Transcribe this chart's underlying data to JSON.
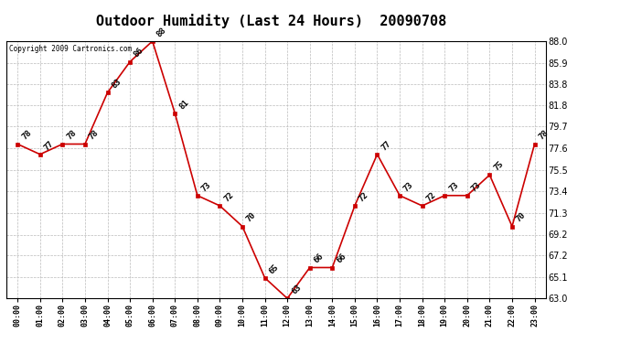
{
  "title": "Outdoor Humidity (Last 24 Hours)  20090708",
  "copyright": "Copyright 2009 Cartronics.com",
  "x_labels": [
    "00:00",
    "01:00",
    "02:00",
    "03:00",
    "04:00",
    "05:00",
    "06:00",
    "07:00",
    "08:00",
    "09:00",
    "10:00",
    "11:00",
    "12:00",
    "13:00",
    "14:00",
    "15:00",
    "16:00",
    "17:00",
    "18:00",
    "19:00",
    "20:00",
    "21:00",
    "22:00",
    "23:00"
  ],
  "y_values": [
    78,
    77,
    78,
    78,
    83,
    86,
    88,
    81,
    73,
    72,
    70,
    65,
    63,
    66,
    66,
    72,
    77,
    73,
    72,
    73,
    73,
    75,
    70,
    78
  ],
  "ylim": [
    63.0,
    88.0
  ],
  "yticks": [
    63.0,
    65.1,
    67.2,
    69.2,
    71.3,
    73.4,
    75.5,
    77.6,
    79.7,
    81.8,
    83.8,
    85.9,
    88.0
  ],
  "line_color": "#cc0000",
  "marker_color": "#cc0000",
  "bg_color": "#ffffff",
  "grid_color": "#bbbbbb",
  "title_fontsize": 11,
  "annot_fontsize": 6.5
}
